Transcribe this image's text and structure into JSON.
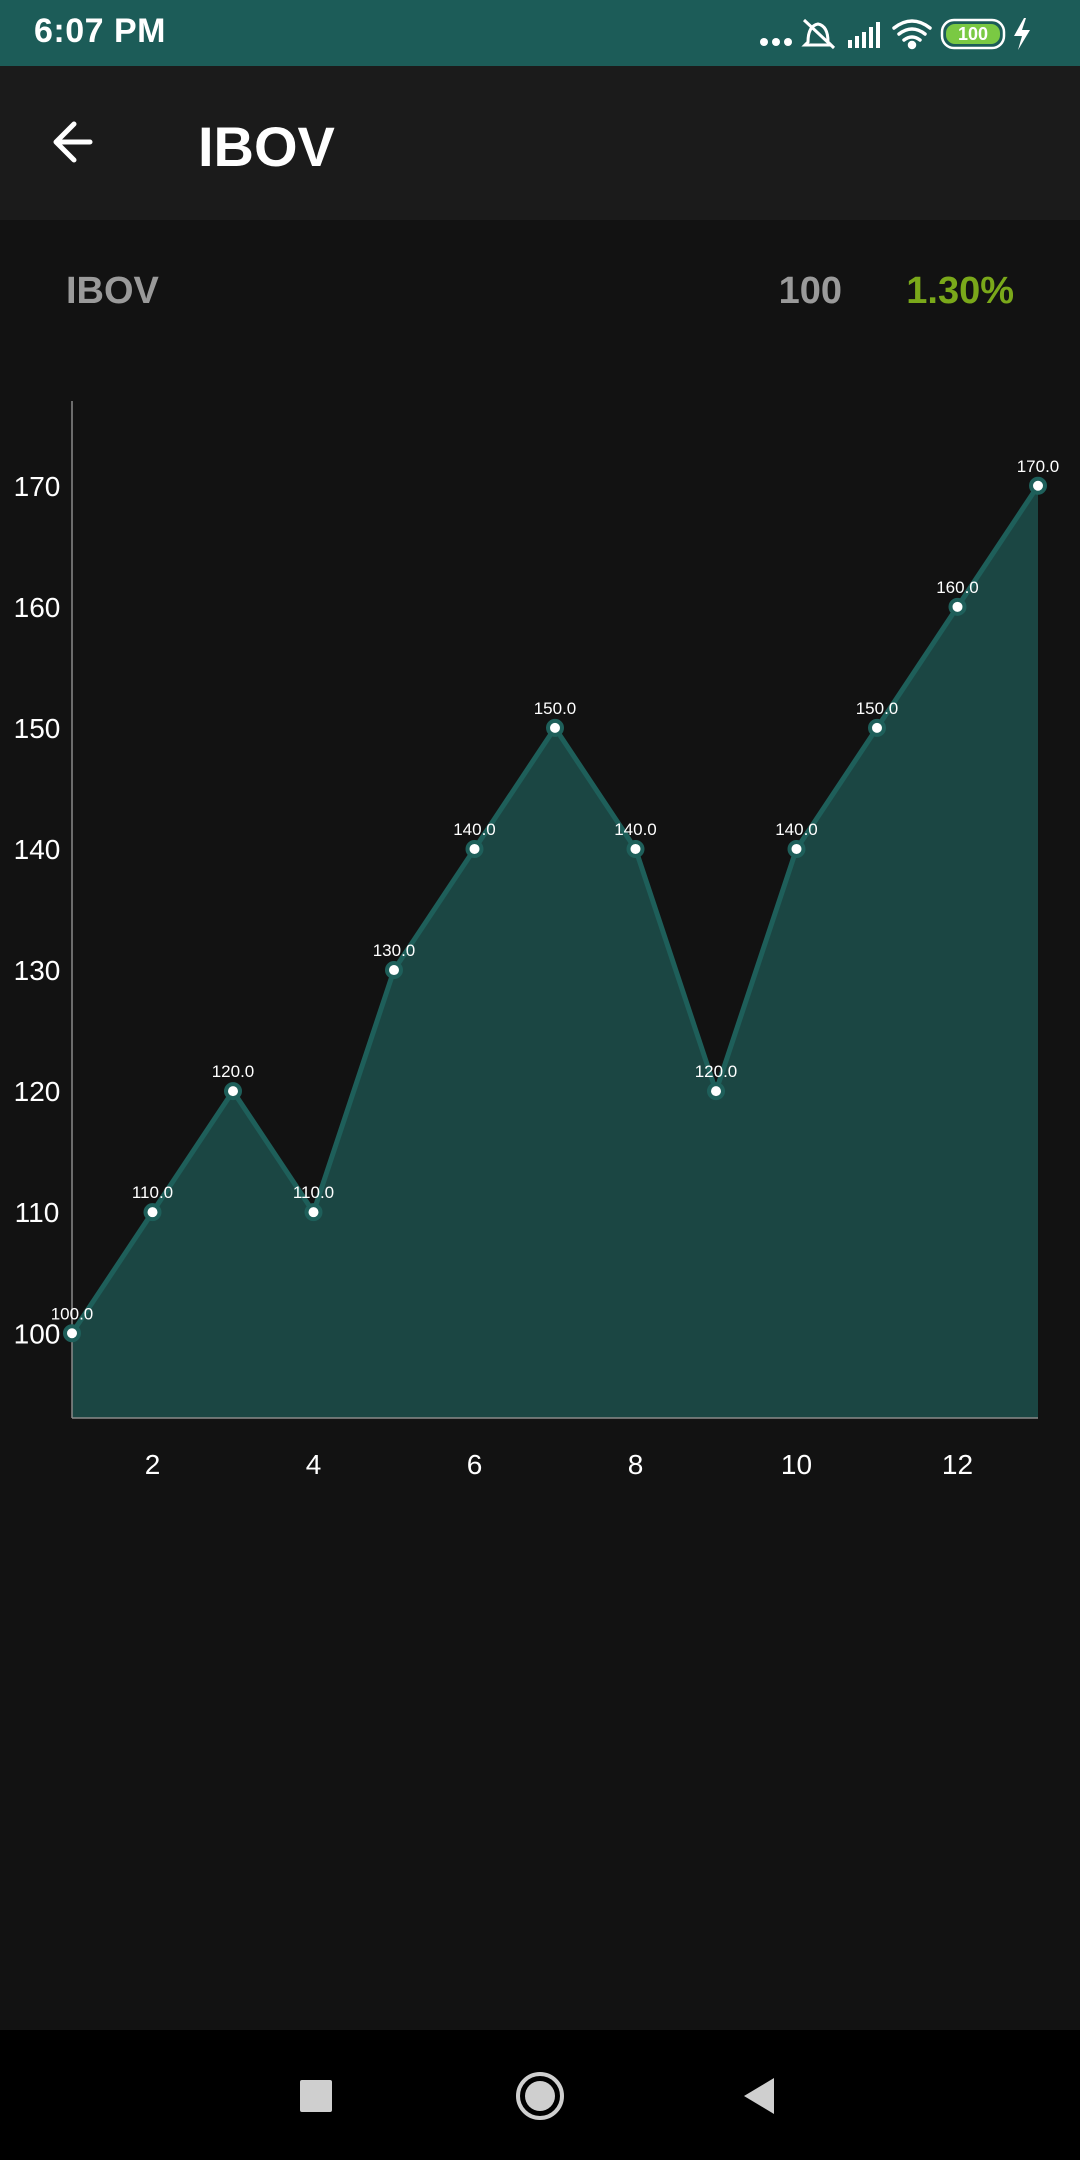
{
  "status_bar": {
    "time": "6:07 PM",
    "battery": "100",
    "icons": [
      "more-dots-icon",
      "notifications-off-icon",
      "signal-icon",
      "wifi-icon",
      "battery-icon",
      "charging-icon"
    ]
  },
  "app_bar": {
    "title": "IBOV",
    "back_icon": "arrow-back-icon"
  },
  "summary": {
    "name": "IBOV",
    "value": "100",
    "change": "1.30%"
  },
  "colors": {
    "status_bar": "#1c5c58",
    "app_bar": "#1b1b1b",
    "background": "#121212",
    "line": "#1e5f5a",
    "fill": "#1b4643",
    "positive": "#7aa81a",
    "label_gray": "#9a9a9a"
  },
  "chart_data": {
    "type": "area",
    "x": [
      1,
      2,
      3,
      4,
      5,
      6,
      7,
      8,
      9,
      10,
      11,
      12,
      13
    ],
    "values": [
      100,
      110,
      120,
      110,
      130,
      140,
      150,
      140,
      120,
      140,
      150,
      160,
      170
    ],
    "point_labels": [
      "100.0",
      "110.0",
      "120.0",
      "110.0",
      "130.0",
      "140.0",
      "150.0",
      "140.0",
      "120.0",
      "140.0",
      "150.0",
      "160.0",
      "170.0"
    ],
    "xticks": [
      "2",
      "4",
      "6",
      "8",
      "10",
      "12"
    ],
    "yticks": [
      "100",
      "110",
      "120",
      "130",
      "140",
      "150",
      "160",
      "170"
    ],
    "xlim": [
      1,
      13
    ],
    "ylim": [
      93,
      177
    ],
    "grid": false,
    "legend": "none"
  },
  "nav_bar": {
    "icons": [
      "recents-square-icon",
      "home-circle-icon",
      "back-triangle-icon"
    ]
  }
}
